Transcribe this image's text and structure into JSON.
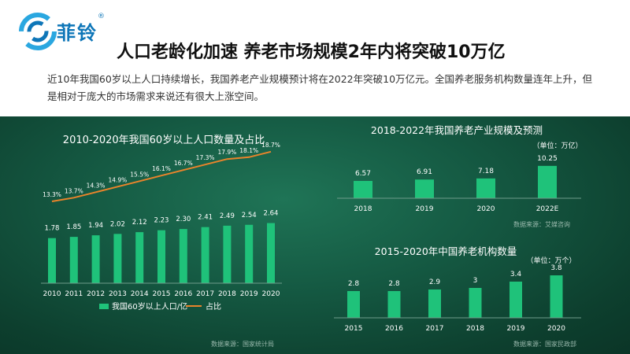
{
  "brand": {
    "name": "菲铃",
    "reg": "®"
  },
  "page": {
    "title": "人口老龄化加速 养老市场规模2年内将突破10万亿",
    "description": "近10年我国60岁以上人口持续增长，我国养老产业规模预计将在2022年突破10万亿元。全国养老服务机构数量连年上升，但是相对于庞大的市场需求来说还有很大上涨空间。"
  },
  "colors": {
    "bar": "#1fc27a",
    "line": "#e9842b",
    "title": "#111111",
    "logo": "#0e76b8"
  },
  "chart_data": [
    {
      "type": "bar",
      "title": "2010-2020年我国60岁以上人口数量及占比",
      "categories": [
        "2010",
        "2011",
        "2012",
        "2013",
        "2014",
        "2015",
        "2016",
        "2017",
        "2018",
        "2019",
        "2020"
      ],
      "series": [
        {
          "name": "我国60岁以上人口/亿",
          "type": "bar",
          "values": [
            1.78,
            1.85,
            1.94,
            2.02,
            2.12,
            2.23,
            2.3,
            2.41,
            2.49,
            2.54,
            2.64
          ],
          "labels": [
            "1.78",
            "1.85",
            "1.94",
            "2.02",
            "2.12",
            "2.23",
            "2.30",
            "2.41",
            "2.49",
            "2.54",
            "2.64"
          ]
        },
        {
          "name": "占比",
          "type": "line",
          "values": [
            13.3,
            13.7,
            14.3,
            14.9,
            15.5,
            16.1,
            16.7,
            17.3,
            17.9,
            18.1,
            18.7
          ],
          "labels": [
            "13.3%",
            "13.7%",
            "14.3%",
            "14.9%",
            "15.5%",
            "16.1%",
            "16.7%",
            "17.3%",
            "17.9%",
            "18.1%",
            "18.7%"
          ]
        }
      ],
      "legend": "bottom",
      "source": "数据来源：国家统计局"
    },
    {
      "type": "bar",
      "title": "2018-2022年我国养老产业规模及预测",
      "unit": "（单位：万亿）",
      "categories": [
        "2018",
        "2019",
        "2020",
        "2022E"
      ],
      "values": [
        6.57,
        6.91,
        7.18,
        10.25
      ],
      "labels": [
        "6.57",
        "6.91",
        "7.18",
        "10.25"
      ],
      "source": "数据来源：艾媒咨询"
    },
    {
      "type": "bar",
      "title": "2015-2020年中国养老机构数量",
      "unit": "（单位：万个）",
      "categories": [
        "2015",
        "2016",
        "2017",
        "2018",
        "2019",
        "2020"
      ],
      "values": [
        2.8,
        2.8,
        2.9,
        3,
        3.4,
        3.8
      ],
      "labels": [
        "2.8",
        "2.8",
        "2.9",
        "3",
        "3.4",
        "3.8"
      ],
      "source": "数据来源：国家民政部"
    }
  ]
}
